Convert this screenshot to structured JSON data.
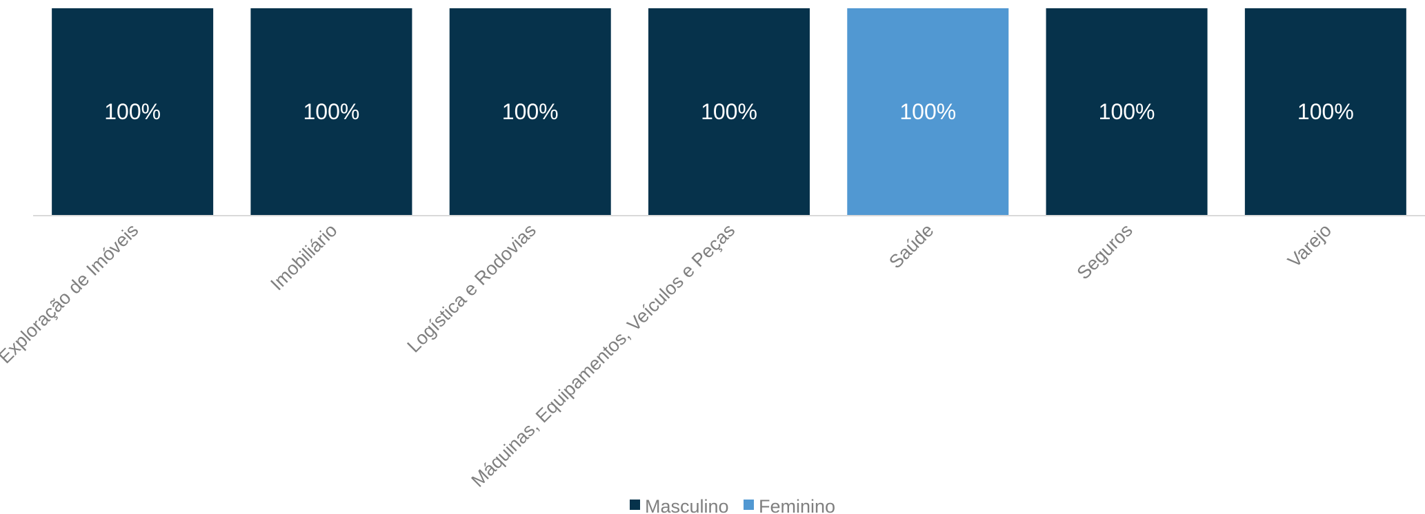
{
  "chart_data": {
    "type": "bar",
    "stacked": true,
    "categories": [
      "Exploração de Imóveis",
      "Imobiliário",
      "Logística e Rodovias",
      "Máquinas, Equipamentos, Veículos e Peças",
      "Saúde",
      "Seguros",
      "Varejo"
    ],
    "series": [
      {
        "name": "Masculino",
        "color": "#06324b",
        "values": [
          100,
          100,
          100,
          100,
          0,
          100,
          100
        ]
      },
      {
        "name": "Feminino",
        "color": "#5198d2",
        "values": [
          0,
          0,
          0,
          0,
          100,
          0,
          0
        ]
      }
    ],
    "data_labels": [
      "100%",
      "100%",
      "100%",
      "100%",
      "100%",
      "100%",
      "100%"
    ],
    "ylim": [
      0,
      100
    ],
    "grid": false,
    "legend_position": "bottom",
    "axis_color": "#d9d9d9"
  }
}
